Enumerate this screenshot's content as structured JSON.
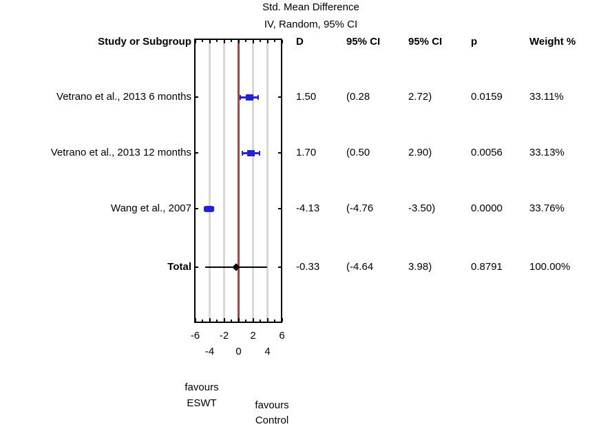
{
  "title": {
    "line1": "Std. Mean Difference",
    "line2": "IV, Random, 95% CI"
  },
  "columns": {
    "study": "Study or Subgroup",
    "d": "D",
    "ci_low": "95% CI",
    "ci_high": "95% CI",
    "p": "p",
    "weight": "Weight %"
  },
  "chart_data": {
    "type": "forest",
    "title": "Std. Mean Difference",
    "subtitle": "IV, Random, 95% CI",
    "xlim": [
      -6,
      6
    ],
    "axis": {
      "major_ticks": [
        -6,
        -4,
        -2,
        0,
        2,
        4,
        6
      ],
      "minor_ticks": [
        -5,
        -3,
        -1,
        1,
        3,
        5
      ],
      "tick_labels_row1": [
        "-6",
        "-2",
        "2",
        "6"
      ],
      "tick_label_values_row1": [
        -6,
        -2,
        2,
        6
      ],
      "tick_labels_row2": [
        "-4",
        "0",
        "4"
      ],
      "tick_label_values_row2": [
        -4,
        0,
        4
      ],
      "gridlines": [
        -4,
        -2,
        2,
        4
      ],
      "zero_line": 0
    },
    "studies": [
      {
        "label": "Vetrano et al., 2013 6 months",
        "d": 1.5,
        "ci_lower": 0.28,
        "ci_upper": 2.72,
        "d_text": "1.50",
        "ci_lower_text": "(0.28",
        "ci_upper_text": "2.72)",
        "p_text": "0.0159",
        "weight_text": "33.11%"
      },
      {
        "label": "Vetrano et al., 2013 12 months",
        "d": 1.7,
        "ci_lower": 0.5,
        "ci_upper": 2.9,
        "d_text": "1.70",
        "ci_lower_text": "(0.50",
        "ci_upper_text": "2.90)",
        "p_text": "0.0056",
        "weight_text": "33.13%"
      },
      {
        "label": "Wang et al., 2007",
        "d": -4.13,
        "ci_lower": -4.76,
        "ci_upper": -3.5,
        "d_text": "-4.13",
        "ci_lower_text": "(-4.76",
        "ci_upper_text": "-3.50)",
        "p_text": "0.0000",
        "weight_text": "33.76%"
      }
    ],
    "total": {
      "label": "Total",
      "d": -0.33,
      "ci_lower": -4.64,
      "ci_upper": 3.98,
      "d_text": "-0.33",
      "ci_lower_text": "(-4.64",
      "ci_upper_text": "3.98)",
      "p_text": "0.8791",
      "weight_text": "100.00%"
    },
    "footer": {
      "left_line1": "favours",
      "left_line2": "ESWT",
      "right_line1": "favours",
      "right_line2": "Control"
    },
    "colors": {
      "marker_blue": "#2222d2",
      "zero_line_red": "#cc3333",
      "gridline_gray": "#d8d8d8",
      "diamond_black": "#000000"
    }
  }
}
